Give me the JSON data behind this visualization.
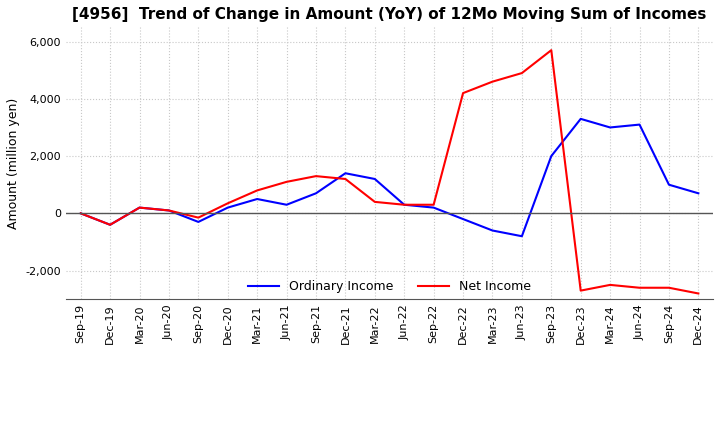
{
  "title": "[4956]  Trend of Change in Amount (YoY) of 12Mo Moving Sum of Incomes",
  "ylabel": "Amount (million yen)",
  "x_labels": [
    "Sep-19",
    "Dec-19",
    "Mar-20",
    "Jun-20",
    "Sep-20",
    "Dec-20",
    "Mar-21",
    "Jun-21",
    "Sep-21",
    "Dec-21",
    "Mar-22",
    "Jun-22",
    "Sep-22",
    "Dec-22",
    "Mar-23",
    "Jun-23",
    "Sep-23",
    "Dec-23",
    "Mar-24",
    "Jun-24",
    "Sep-24",
    "Dec-24"
  ],
  "ordinary_income": [
    0,
    -400,
    200,
    100,
    -300,
    200,
    500,
    300,
    700,
    1400,
    1200,
    300,
    200,
    -200,
    -600,
    -800,
    2000,
    3300,
    3000,
    3100,
    1000,
    700
  ],
  "net_income": [
    0,
    -400,
    200,
    100,
    -150,
    350,
    800,
    1100,
    1300,
    1200,
    400,
    300,
    300,
    4200,
    4600,
    4900,
    5700,
    -2700,
    -2500,
    -2600,
    -2600,
    -2800
  ],
  "ordinary_color": "#0000ff",
  "net_color": "#ff0000",
  "ylim": [
    -3000,
    6500
  ],
  "yticks": [
    -2000,
    0,
    2000,
    4000,
    6000
  ],
  "background_color": "#ffffff",
  "grid_color": "#c8c8c8",
  "title_fontsize": 11,
  "axis_fontsize": 9,
  "tick_fontsize": 8,
  "legend_fontsize": 9
}
